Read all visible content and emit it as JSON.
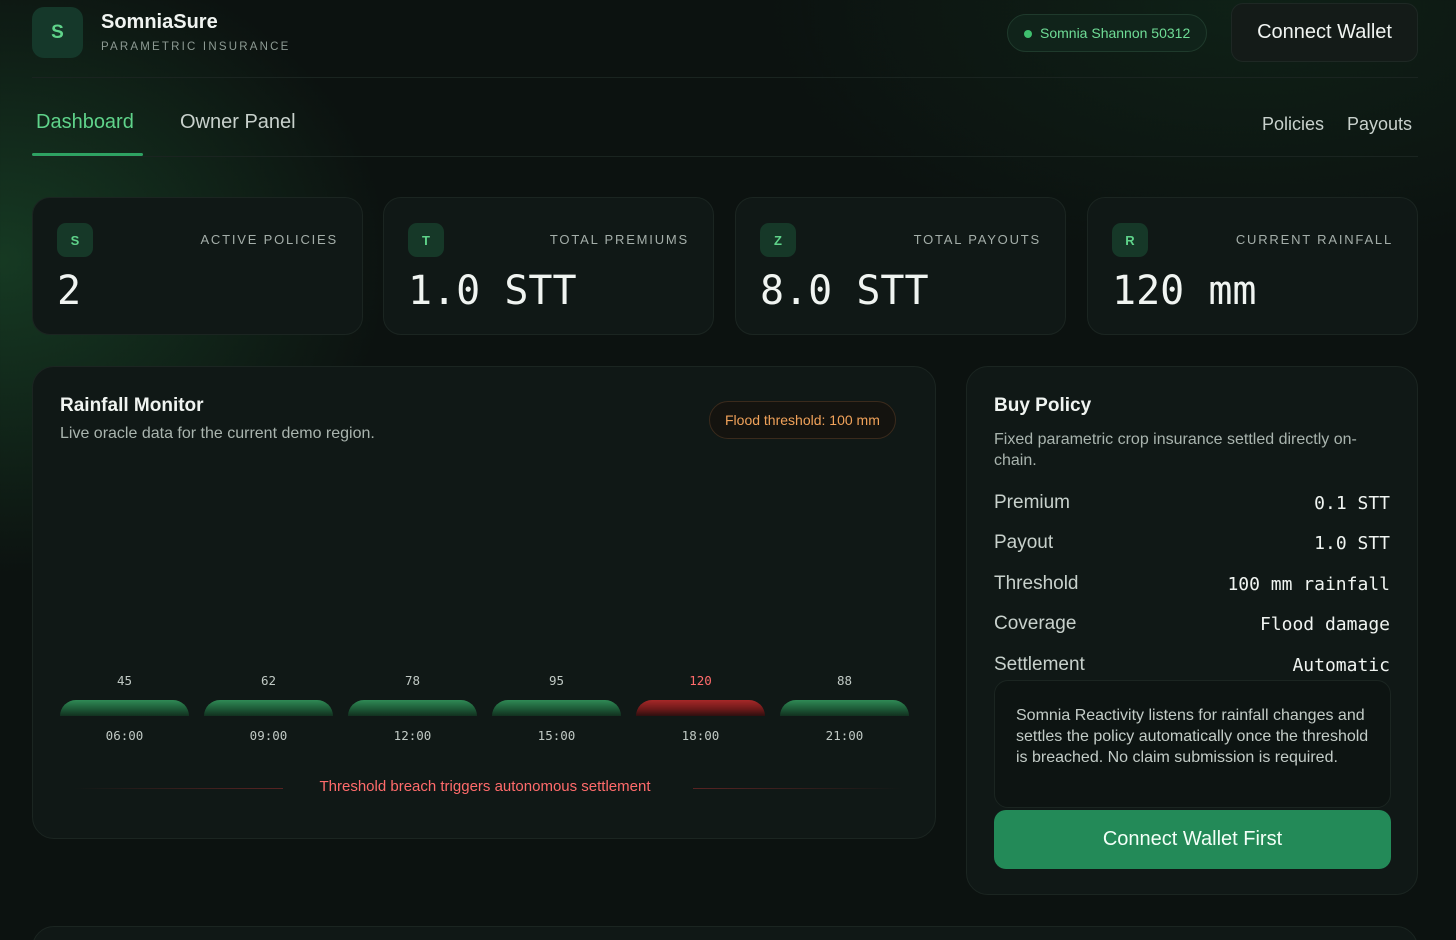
{
  "header": {
    "logo_letter": "S",
    "brand": "SomniaSure",
    "brand_sub": "PARAMETRIC INSURANCE",
    "network": "Somnia Shannon 50312",
    "connect_label": "Connect Wallet"
  },
  "tabs": [
    {
      "label": "Dashboard",
      "active": true
    },
    {
      "label": "Owner Panel",
      "active": false
    }
  ],
  "links": [
    "Policies",
    "Payouts"
  ],
  "stats": [
    {
      "icon": "S",
      "label": "ACTIVE POLICIES",
      "value": "2"
    },
    {
      "icon": "T",
      "label": "TOTAL PREMIUMS",
      "value": "1.0 STT"
    },
    {
      "icon": "Z",
      "label": "TOTAL PAYOUTS",
      "value": "8.0 STT"
    },
    {
      "icon": "R",
      "label": "CURRENT RAINFALL",
      "value": "120 mm"
    }
  ],
  "rainfall": {
    "title": "Rainfall Monitor",
    "subtitle": "Live oracle data for the current demo region.",
    "threshold_badge": "Flood threshold: 100 mm",
    "readings": [
      {
        "time": "06:00",
        "value": "45",
        "breach": false
      },
      {
        "time": "09:00",
        "value": "62",
        "breach": false
      },
      {
        "time": "12:00",
        "value": "78",
        "breach": false
      },
      {
        "time": "15:00",
        "value": "95",
        "breach": false
      },
      {
        "time": "18:00",
        "value": "120",
        "breach": true
      },
      {
        "time": "21:00",
        "value": "88",
        "breach": false
      }
    ],
    "breach_text": "Threshold breach triggers autonomous settlement"
  },
  "buy_policy": {
    "title": "Buy Policy",
    "description": "Fixed parametric crop insurance settled directly on-chain.",
    "rows": [
      {
        "key": "Premium",
        "value": "0.1 STT"
      },
      {
        "key": "Payout",
        "value": "1.0 STT"
      },
      {
        "key": "Threshold",
        "value": "100 mm rainfall"
      },
      {
        "key": "Coverage",
        "value": "Flood damage"
      },
      {
        "key": "Settlement",
        "value": "Automatic"
      }
    ],
    "info": "Somnia Reactivity listens for rainfall changes and settles the policy automatically once the threshold is breached. No claim submission is required.",
    "cta": "Connect Wallet First"
  },
  "colors": {
    "accent": "#5fd38a",
    "primary_button": "#238a58",
    "warning": "#f0a25a",
    "danger": "#ff6b6b",
    "background": "#0c1210"
  }
}
